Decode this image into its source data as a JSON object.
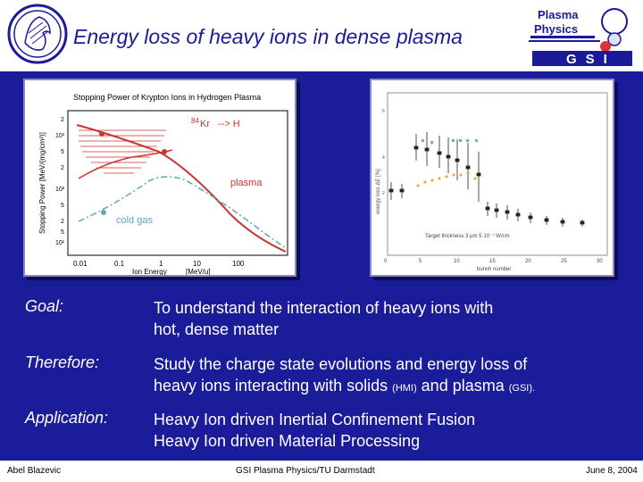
{
  "slide": {
    "title": "Energy loss of heavy ions in dense plasma"
  },
  "logos": {
    "right_line1": "Plasma",
    "right_line2": "Physics",
    "right_bottom": "GSI"
  },
  "figure_left": {
    "title": "Stopping Power of Krypton Ions in Hydrogen Plasma",
    "reaction": "--> H",
    "isotope_mass": "84",
    "isotope_element": "Kr",
    "curve_plasma": "plasma",
    "curve_cold": "cold gas",
    "ylabel": "Stopping Power [MeV/(mg/cm²)]",
    "xlabel": "Ion Energy",
    "xunit": "[MeV/u]",
    "xticks": [
      "0.01",
      "0.1",
      "1",
      "10",
      "100"
    ],
    "yticks": [
      "10³",
      "10²",
      "10¹"
    ],
    "yminor": [
      "2",
      "5",
      "2",
      "5",
      "2",
      "5"
    ]
  },
  "figure_right": {
    "ylabel": "energy loss ΔE [%]",
    "xlabel": "bunch number",
    "annotation": "Target thickness 3 µm  5·10⁻⁷ W/cm",
    "xticks": [
      "0",
      "5",
      "10",
      "15",
      "20",
      "25",
      "30"
    ],
    "yticks": [
      "2",
      "4",
      "6"
    ]
  },
  "content": {
    "goal_label": "Goal:",
    "goal_line1": "To understand the interaction of heavy ions with",
    "goal_line2": "hot, dense matter",
    "therefore_label": "Therefore:",
    "therefore_line1": "Study the charge state evolutions and energy loss of",
    "therefore_line2_a": "heavy ions interacting with solids",
    "therefore_hmi": "(HMI)",
    "therefore_and": "and plasma",
    "therefore_gsi": "(GSI).",
    "application_label": "Application:",
    "application_line1": "Heavy Ion driven Inertial Confinement Fusion",
    "application_line2": "Heavy Ion driven Material Processing"
  },
  "footer": {
    "left": "Abel Blazevic",
    "center": "GSI Plasma Physics/TU Darmstadt",
    "right": "June 8, 2004"
  },
  "colors": {
    "background": "#1b1c9a",
    "title": "#1a1a9a",
    "plasma_curve": "#cc3333",
    "cold_curve": "#5fa8b8"
  }
}
